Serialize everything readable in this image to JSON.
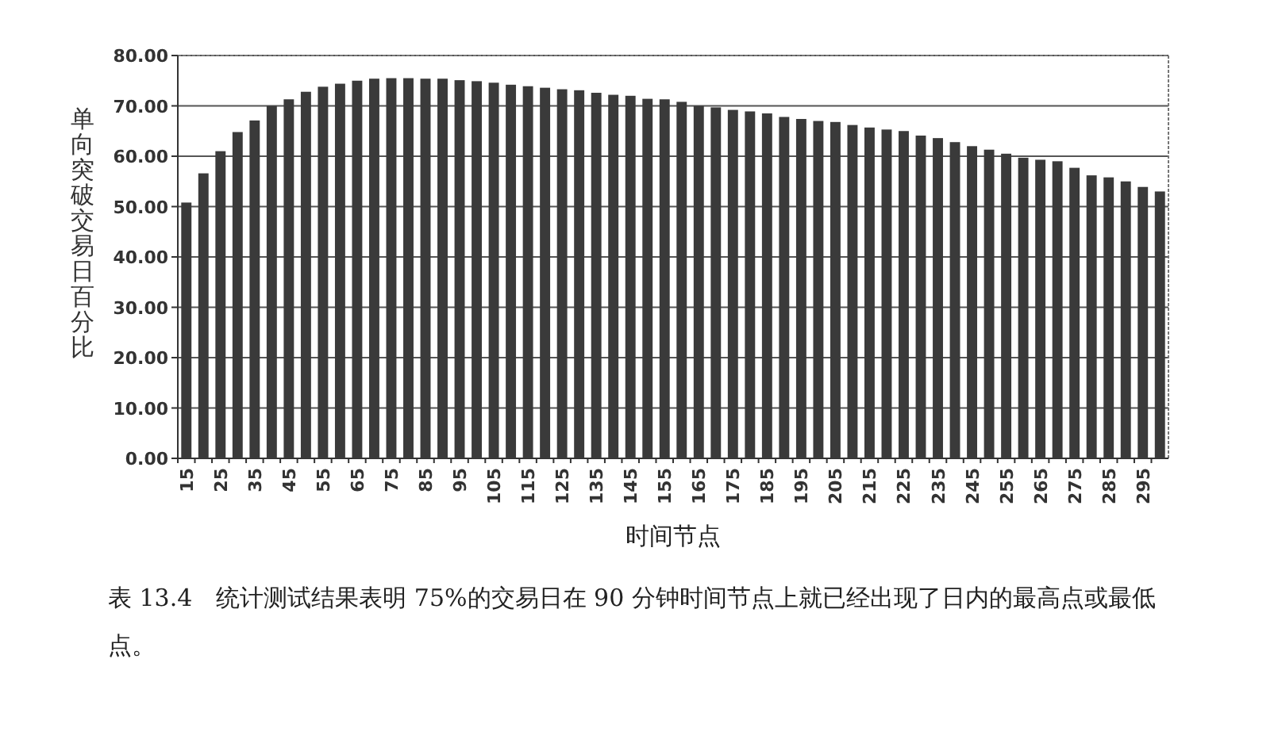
{
  "chart_data": {
    "type": "bar",
    "ylabel": "单向突破交易日百分比",
    "xlabel": "时间节点",
    "categories": [
      "15",
      null,
      "25",
      null,
      "35",
      null,
      "45",
      null,
      "55",
      null,
      "65",
      null,
      "75",
      null,
      "85",
      null,
      "95",
      null,
      "105",
      null,
      "115",
      null,
      "125",
      null,
      "135",
      null,
      "145",
      null,
      "155",
      null,
      "165",
      null,
      "175",
      null,
      "185",
      null,
      "195",
      null,
      "205",
      null,
      "215",
      null,
      "225",
      null,
      "235",
      null,
      "245",
      null,
      "255",
      null,
      "265",
      null,
      "275",
      null,
      "285",
      null,
      "295",
      null
    ],
    "values": [
      50.8,
      56.6,
      61.0,
      64.8,
      67.1,
      70.0,
      71.3,
      72.8,
      73.8,
      74.4,
      75.0,
      75.4,
      75.5,
      75.5,
      75.4,
      75.4,
      75.1,
      74.9,
      74.6,
      74.2,
      73.9,
      73.6,
      73.3,
      73.1,
      72.6,
      72.2,
      72.0,
      71.4,
      71.3,
      70.8,
      70.0,
      69.7,
      69.2,
      68.9,
      68.5,
      67.8,
      67.4,
      67.0,
      66.8,
      66.2,
      65.7,
      65.3,
      65.0,
      64.1,
      63.6,
      62.8,
      62.0,
      61.3,
      60.5,
      59.7,
      59.3,
      59.0,
      57.7,
      56.2,
      55.8,
      55.0,
      53.9,
      53.0
    ],
    "color": "#3a3a3a",
    "ylim": [
      0,
      80
    ],
    "yticks": [
      {
        "value": 0,
        "label": "0.00"
      },
      {
        "value": 10,
        "label": "10.00"
      },
      {
        "value": 20,
        "label": "20.00"
      },
      {
        "value": 30,
        "label": "30.00"
      },
      {
        "value": 40,
        "label": "40.00"
      },
      {
        "value": 50,
        "label": "50.00"
      },
      {
        "value": 60,
        "label": "60.00"
      },
      {
        "value": 70,
        "label": "70.00"
      },
      {
        "value": 80,
        "label": "80.00"
      }
    ],
    "grid": "y",
    "annotations": [
      "表 13.4　统计测试结果表明 75%的交易日在 90 分钟时间节点上就已经出现了日内的最高点或最低点。"
    ]
  }
}
